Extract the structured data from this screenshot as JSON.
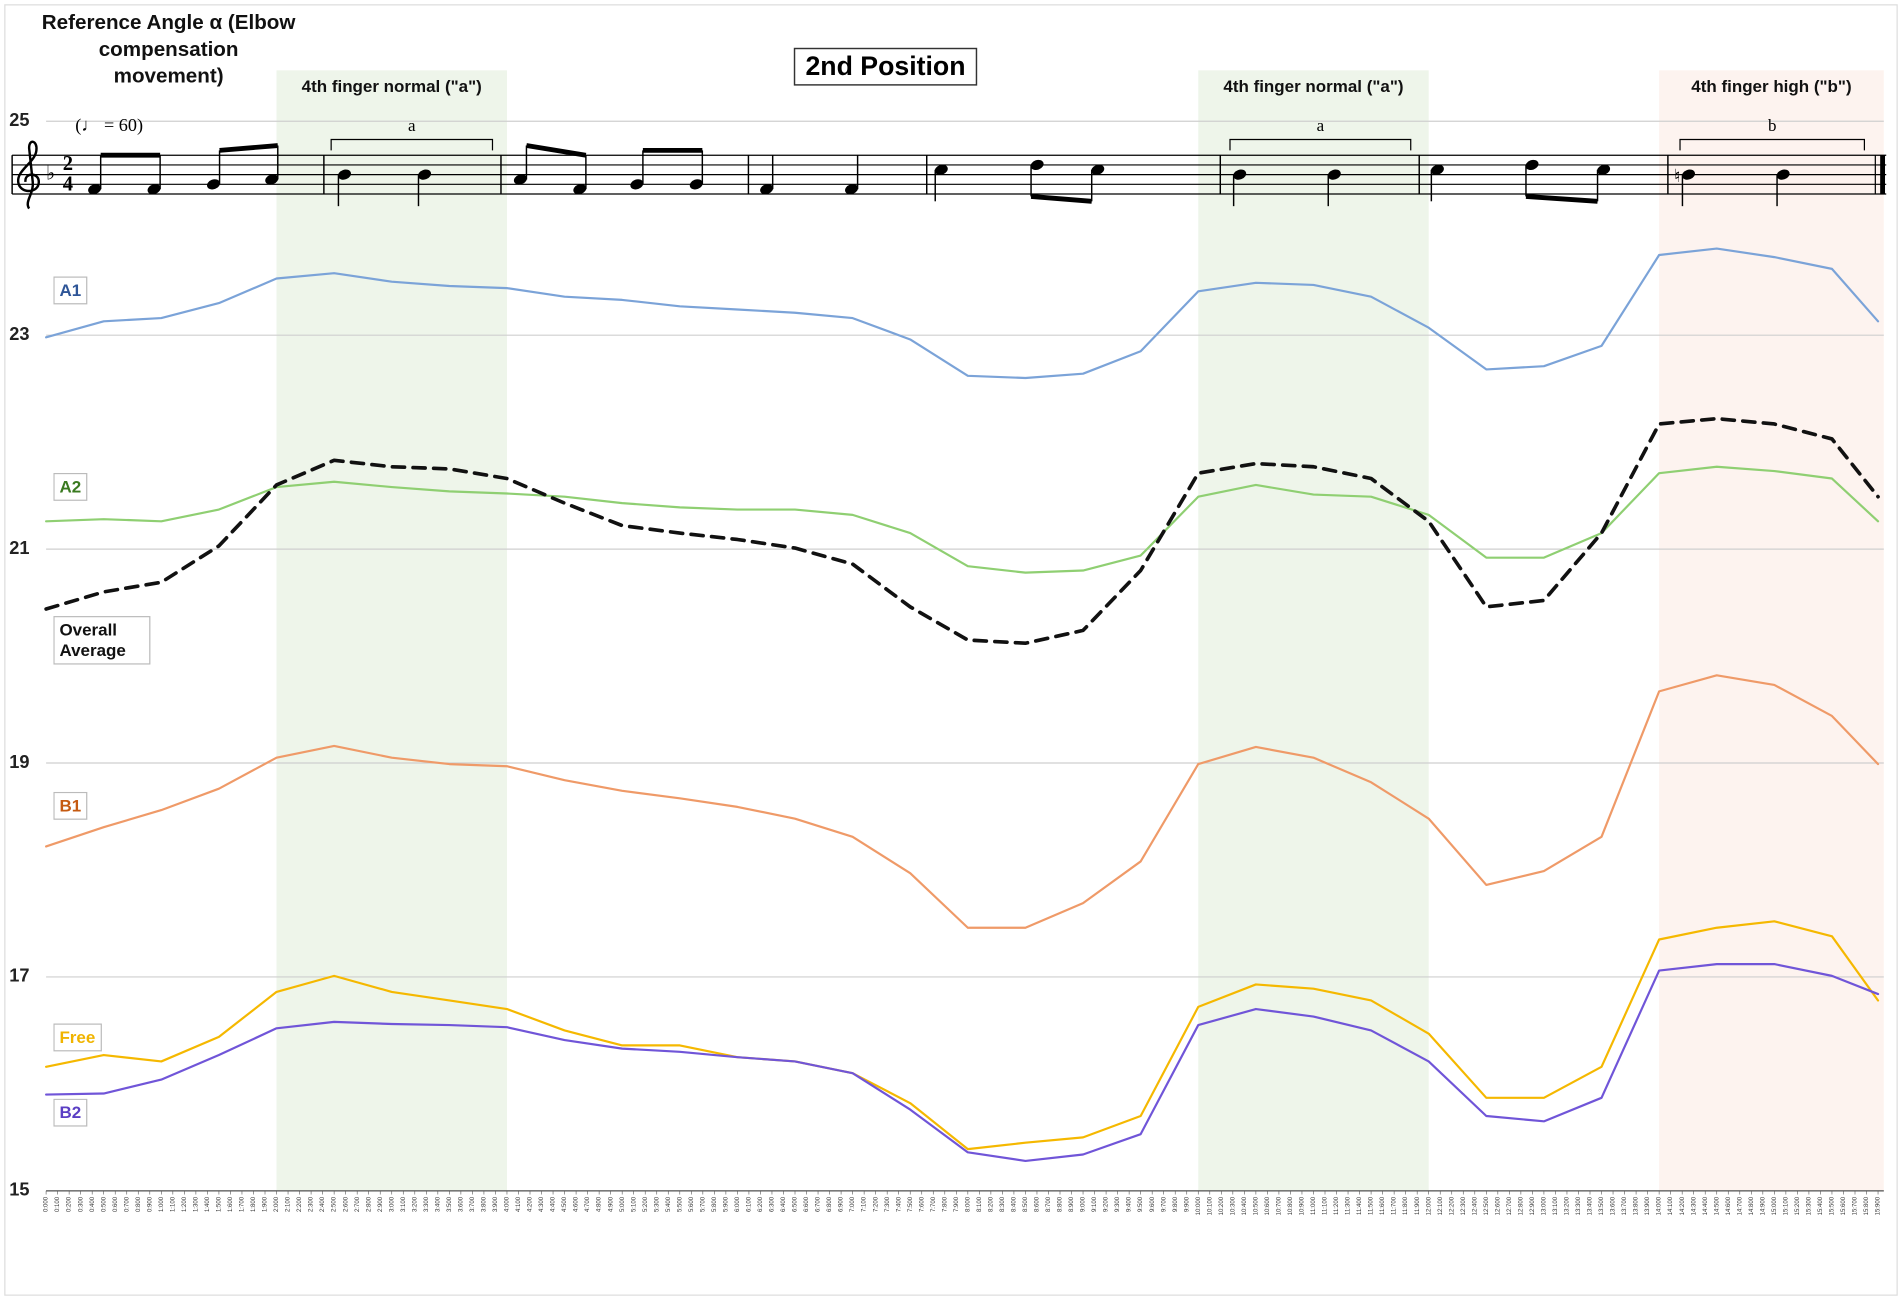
{
  "chart_data": {
    "type": "line",
    "title": "2nd Position",
    "y_label": "Reference Angle α (Elbow compensation movement)",
    "score": {
      "tempo": "(♩ = 60)",
      "key_signature": "♭",
      "time_signature": [
        "2",
        "4"
      ],
      "accidental": "♮",
      "brackets": [
        {
          "label": "a"
        },
        {
          "label": "a"
        },
        {
          "label": "b"
        }
      ]
    },
    "regions": [
      {
        "label": "4th finger normal (\"a\")",
        "x0": 2,
        "x1": 4,
        "color": "#eef5ea"
      },
      {
        "label": "4th finger normal (\"a\")",
        "x0": 10,
        "x1": 12,
        "color": "#eef5ea"
      },
      {
        "label": "4th finger high (\"b\")",
        "x0": 14,
        "x1": 15.95,
        "color": "#fdf3ef"
      }
    ],
    "x": [
      0,
      0.5,
      1,
      1.5,
      2,
      2.5,
      3,
      3.5,
      4,
      4.5,
      5,
      5.5,
      6,
      6.5,
      7,
      7.5,
      8,
      8.5,
      9,
      9.5,
      10,
      10.5,
      11,
      11.5,
      12,
      12.5,
      13,
      13.5,
      14,
      14.5,
      15,
      15.5,
      15.9
    ],
    "series": [
      {
        "name": "A1",
        "color": "#7ba3d8",
        "label_color": "#2e5597",
        "style": "solid",
        "values": [
          22.98,
          23.13,
          23.16,
          23.3,
          23.53,
          23.58,
          23.5,
          23.46,
          23.44,
          23.36,
          23.33,
          23.27,
          23.24,
          23.21,
          23.16,
          22.96,
          22.62,
          22.6,
          22.64,
          22.85,
          23.41,
          23.49,
          23.47,
          23.36,
          23.07,
          22.68,
          22.71,
          22.9,
          23.75,
          23.81,
          23.73,
          23.62,
          23.13
        ]
      },
      {
        "name": "A2",
        "color": "#8fcf72",
        "label_color": "#3a7a20",
        "style": "solid",
        "values": [
          21.26,
          21.28,
          21.26,
          21.37,
          21.58,
          21.63,
          21.58,
          21.54,
          21.52,
          21.49,
          21.43,
          21.39,
          21.37,
          21.37,
          21.32,
          21.15,
          20.84,
          20.78,
          20.8,
          20.94,
          21.49,
          21.6,
          21.51,
          21.49,
          21.32,
          20.92,
          20.92,
          21.15,
          21.71,
          21.77,
          21.73,
          21.66,
          21.26
        ]
      },
      {
        "name": "Overall Average",
        "color": "#111111",
        "label_color": "#111111",
        "style": "dashed",
        "values": [
          20.44,
          20.6,
          20.69,
          21.03,
          21.6,
          21.83,
          21.77,
          21.75,
          21.66,
          21.43,
          21.22,
          21.15,
          21.09,
          21.01,
          20.86,
          20.46,
          20.15,
          20.12,
          20.24,
          20.8,
          21.71,
          21.8,
          21.77,
          21.66,
          21.26,
          20.46,
          20.52,
          21.15,
          22.17,
          22.22,
          22.17,
          22.03,
          21.49
        ]
      },
      {
        "name": "B1",
        "color": "#ef9a68",
        "label_color": "#c55a11",
        "style": "solid",
        "values": [
          18.22,
          18.4,
          18.56,
          18.76,
          19.05,
          19.16,
          19.05,
          18.99,
          18.97,
          18.84,
          18.74,
          18.67,
          18.59,
          18.48,
          18.31,
          17.97,
          17.46,
          17.46,
          17.69,
          18.08,
          18.99,
          19.15,
          19.05,
          18.82,
          18.48,
          17.86,
          17.99,
          18.31,
          19.67,
          19.82,
          19.73,
          19.44,
          18.99
        ]
      },
      {
        "name": "Free",
        "color": "#f5b800",
        "label_color": "#f0b400",
        "style": "solid",
        "values": [
          16.16,
          16.27,
          16.21,
          16.44,
          16.86,
          17.01,
          16.86,
          16.78,
          16.7,
          16.5,
          16.36,
          16.36,
          16.25,
          16.21,
          16.1,
          15.82,
          15.39,
          15.45,
          15.5,
          15.7,
          16.72,
          16.93,
          16.89,
          16.78,
          16.47,
          15.87,
          15.87,
          16.16,
          17.35,
          17.46,
          17.52,
          17.38,
          16.78
        ]
      },
      {
        "name": "B2",
        "color": "#7055d8",
        "label_color": "#5b3fc4",
        "style": "solid",
        "values": [
          15.9,
          15.91,
          16.04,
          16.27,
          16.52,
          16.58,
          16.56,
          16.55,
          16.53,
          16.41,
          16.33,
          16.3,
          16.25,
          16.21,
          16.1,
          15.76,
          15.36,
          15.28,
          15.34,
          15.53,
          16.55,
          16.7,
          16.63,
          16.5,
          16.21,
          15.7,
          15.65,
          15.87,
          17.06,
          17.12,
          17.12,
          17.01,
          16.84
        ]
      }
    ],
    "xlim": [
      0,
      15.95
    ],
    "ylim": [
      15,
      26.05
    ],
    "yticks": [
      15,
      17,
      19,
      21,
      23,
      25
    ],
    "grid": true,
    "xticks": [
      {
        "value": 0,
        "label": "0:000"
      },
      {
        "value": 0.1,
        "label": "0:100"
      },
      {
        "value": 0.2,
        "label": "0:200"
      },
      {
        "value": 0.3,
        "label": "0:300"
      },
      {
        "value": 0.4,
        "label": "0:400"
      },
      {
        "value": 0.5,
        "label": "0:500"
      },
      {
        "value": 0.6,
        "label": "0:600"
      },
      {
        "value": 0.7,
        "label": "0:700"
      },
      {
        "value": 0.8,
        "label": "0:800"
      },
      {
        "value": 0.9,
        "label": "0:900"
      },
      {
        "value": 1,
        "label": "1:000"
      },
      {
        "value": 1.1,
        "label": "1:100"
      },
      {
        "value": 1.2,
        "label": "1:200"
      },
      {
        "value": 1.3,
        "label": "1:300"
      },
      {
        "value": 1.4,
        "label": "1:400"
      },
      {
        "value": 1.5,
        "label": "1:500"
      },
      {
        "value": 1.6,
        "label": "1:600"
      },
      {
        "value": 1.7,
        "label": "1:700"
      },
      {
        "value": 1.8,
        "label": "1:800"
      },
      {
        "value": 1.9,
        "label": "1:900"
      },
      {
        "value": 2,
        "label": "2:000"
      },
      {
        "value": 2.1,
        "label": "2:100"
      },
      {
        "value": 2.2,
        "label": "2:200"
      },
      {
        "value": 2.3,
        "label": "2:300"
      },
      {
        "value": 2.4,
        "label": "2:400"
      },
      {
        "value": 2.5,
        "label": "2:500"
      },
      {
        "value": 2.6,
        "label": "2:600"
      },
      {
        "value": 2.7,
        "label": "2:700"
      },
      {
        "value": 2.8,
        "label": "2:800"
      },
      {
        "value": 2.9,
        "label": "2:900"
      },
      {
        "value": 3,
        "label": "3:000"
      },
      {
        "value": 3.1,
        "label": "3:100"
      },
      {
        "value": 3.2,
        "label": "3:200"
      },
      {
        "value": 3.3,
        "label": "3:300"
      },
      {
        "value": 3.4,
        "label": "3:400"
      },
      {
        "value": 3.5,
        "label": "3:500"
      },
      {
        "value": 3.6,
        "label": "3:600"
      },
      {
        "value": 3.7,
        "label": "3:700"
      },
      {
        "value": 3.8,
        "label": "3:800"
      },
      {
        "value": 3.9,
        "label": "3:900"
      },
      {
        "value": 4,
        "label": "4:000"
      },
      {
        "value": 4.1,
        "label": "4:100"
      },
      {
        "value": 4.2,
        "label": "4:200"
      },
      {
        "value": 4.3,
        "label": "4:300"
      },
      {
        "value": 4.4,
        "label": "4:400"
      },
      {
        "value": 4.5,
        "label": "4:500"
      },
      {
        "value": 4.6,
        "label": "4:600"
      },
      {
        "value": 4.7,
        "label": "4:700"
      },
      {
        "value": 4.8,
        "label": "4:800"
      },
      {
        "value": 4.9,
        "label": "4:900"
      },
      {
        "value": 5,
        "label": "5:000"
      },
      {
        "value": 5.1,
        "label": "5:100"
      },
      {
        "value": 5.2,
        "label": "5:200"
      },
      {
        "value": 5.3,
        "label": "5:300"
      },
      {
        "value": 5.4,
        "label": "5:400"
      },
      {
        "value": 5.5,
        "label": "5:500"
      },
      {
        "value": 5.6,
        "label": "5:600"
      },
      {
        "value": 5.7,
        "label": "5:700"
      },
      {
        "value": 5.8,
        "label": "5:800"
      },
      {
        "value": 5.9,
        "label": "5:900"
      },
      {
        "value": 6,
        "label": "6:000"
      },
      {
        "value": 6.1,
        "label": "6:100"
      },
      {
        "value": 6.2,
        "label": "6:200"
      },
      {
        "value": 6.3,
        "label": "6:300"
      },
      {
        "value": 6.4,
        "label": "6:400"
      },
      {
        "value": 6.5,
        "label": "6:500"
      },
      {
        "value": 6.6,
        "label": "6:600"
      },
      {
        "value": 6.7,
        "label": "6:700"
      },
      {
        "value": 6.8,
        "label": "6:800"
      },
      {
        "value": 6.9,
        "label": "6:900"
      },
      {
        "value": 7,
        "label": "7:000"
      },
      {
        "value": 7.1,
        "label": "7:100"
      },
      {
        "value": 7.2,
        "label": "7:200"
      },
      {
        "value": 7.3,
        "label": "7:300"
      },
      {
        "value": 7.4,
        "label": "7:400"
      },
      {
        "value": 7.5,
        "label": "7:500"
      },
      {
        "value": 7.6,
        "label": "7:600"
      },
      {
        "value": 7.7,
        "label": "7:700"
      },
      {
        "value": 7.8,
        "label": "7:800"
      },
      {
        "value": 7.9,
        "label": "7:900"
      },
      {
        "value": 8,
        "label": "8:000"
      },
      {
        "value": 8.1,
        "label": "8:100"
      },
      {
        "value": 8.2,
        "label": "8:200"
      },
      {
        "value": 8.3,
        "label": "8:300"
      },
      {
        "value": 8.4,
        "label": "8:400"
      },
      {
        "value": 8.5,
        "label": "8:500"
      },
      {
        "value": 8.6,
        "label": "8:600"
      },
      {
        "value": 8.7,
        "label": "8:700"
      },
      {
        "value": 8.8,
        "label": "8:800"
      },
      {
        "value": 8.9,
        "label": "8:900"
      },
      {
        "value": 9,
        "label": "9:000"
      },
      {
        "value": 9.1,
        "label": "9:100"
      },
      {
        "value": 9.2,
        "label": "9:200"
      },
      {
        "value": 9.3,
        "label": "9:300"
      },
      {
        "value": 9.4,
        "label": "9:400"
      },
      {
        "value": 9.5,
        "label": "9:500"
      },
      {
        "value": 9.6,
        "label": "9:600"
      },
      {
        "value": 9.7,
        "label": "9:700"
      },
      {
        "value": 9.8,
        "label": "9:800"
      },
      {
        "value": 9.9,
        "label": "9:900"
      },
      {
        "value": 10,
        "label": "10:000"
      },
      {
        "value": 10.1,
        "label": "10:100"
      },
      {
        "value": 10.2,
        "label": "10:200"
      },
      {
        "value": 10.3,
        "label": "10:300"
      },
      {
        "value": 10.4,
        "label": "10:400"
      },
      {
        "value": 10.5,
        "label": "10:500"
      },
      {
        "value": 10.6,
        "label": "10:600"
      },
      {
        "value": 10.7,
        "label": "10:700"
      },
      {
        "value": 10.8,
        "label": "10:800"
      },
      {
        "value": 10.9,
        "label": "10:900"
      },
      {
        "value": 11,
        "label": "11:000"
      },
      {
        "value": 11.1,
        "label": "11:100"
      },
      {
        "value": 11.2,
        "label": "11:200"
      },
      {
        "value": 11.3,
        "label": "11:300"
      },
      {
        "value": 11.4,
        "label": "11:400"
      },
      {
        "value": 11.5,
        "label": "11:500"
      },
      {
        "value": 11.6,
        "label": "11:600"
      },
      {
        "value": 11.7,
        "label": "11:700"
      },
      {
        "value": 11.8,
        "label": "11:800"
      },
      {
        "value": 11.9,
        "label": "11:900"
      },
      {
        "value": 12,
        "label": "12:000"
      },
      {
        "value": 12.1,
        "label": "12:100"
      },
      {
        "value": 12.2,
        "label": "12:200"
      },
      {
        "value": 12.3,
        "label": "12:300"
      },
      {
        "value": 12.4,
        "label": "12:400"
      },
      {
        "value": 12.5,
        "label": "12:500"
      },
      {
        "value": 12.6,
        "label": "12:600"
      },
      {
        "value": 12.7,
        "label": "12:700"
      },
      {
        "value": 12.8,
        "label": "12:800"
      },
      {
        "value": 12.9,
        "label": "12:900"
      },
      {
        "value": 13,
        "label": "13:000"
      },
      {
        "value": 13.1,
        "label": "13:100"
      },
      {
        "value": 13.2,
        "label": "13:200"
      },
      {
        "value": 13.3,
        "label": "13:300"
      },
      {
        "value": 13.4,
        "label": "13:400"
      },
      {
        "value": 13.5,
        "label": "13:500"
      },
      {
        "value": 13.6,
        "label": "13:600"
      },
      {
        "value": 13.7,
        "label": "13:700"
      },
      {
        "value": 13.8,
        "label": "13:800"
      },
      {
        "value": 13.9,
        "label": "13:900"
      },
      {
        "value": 14,
        "label": "14:000"
      },
      {
        "value": 14.1,
        "label": "14:100"
      },
      {
        "value": 14.2,
        "label": "14:200"
      },
      {
        "value": 14.3,
        "label": "14:300"
      },
      {
        "value": 14.4,
        "label": "14:400"
      },
      {
        "value": 14.5,
        "label": "14:500"
      },
      {
        "value": 14.6,
        "label": "14:600"
      },
      {
        "value": 14.7,
        "label": "14:700"
      },
      {
        "value": 14.8,
        "label": "14:800"
      },
      {
        "value": 14.9,
        "label": "14:900"
      },
      {
        "value": 15,
        "label": "15:000"
      },
      {
        "value": 15.1,
        "label": "15:100"
      },
      {
        "value": 15.2,
        "label": "15:200"
      },
      {
        "value": 15.3,
        "label": "15:300"
      },
      {
        "value": 15.4,
        "label": "15:400"
      },
      {
        "value": 15.5,
        "label": "15:500"
      },
      {
        "value": 15.6,
        "label": "15:600"
      },
      {
        "value": 15.7,
        "label": "15:700"
      },
      {
        "value": 15.8,
        "label": "15:800"
      },
      {
        "value": 15.9,
        "label": "15:900"
      }
    ]
  }
}
